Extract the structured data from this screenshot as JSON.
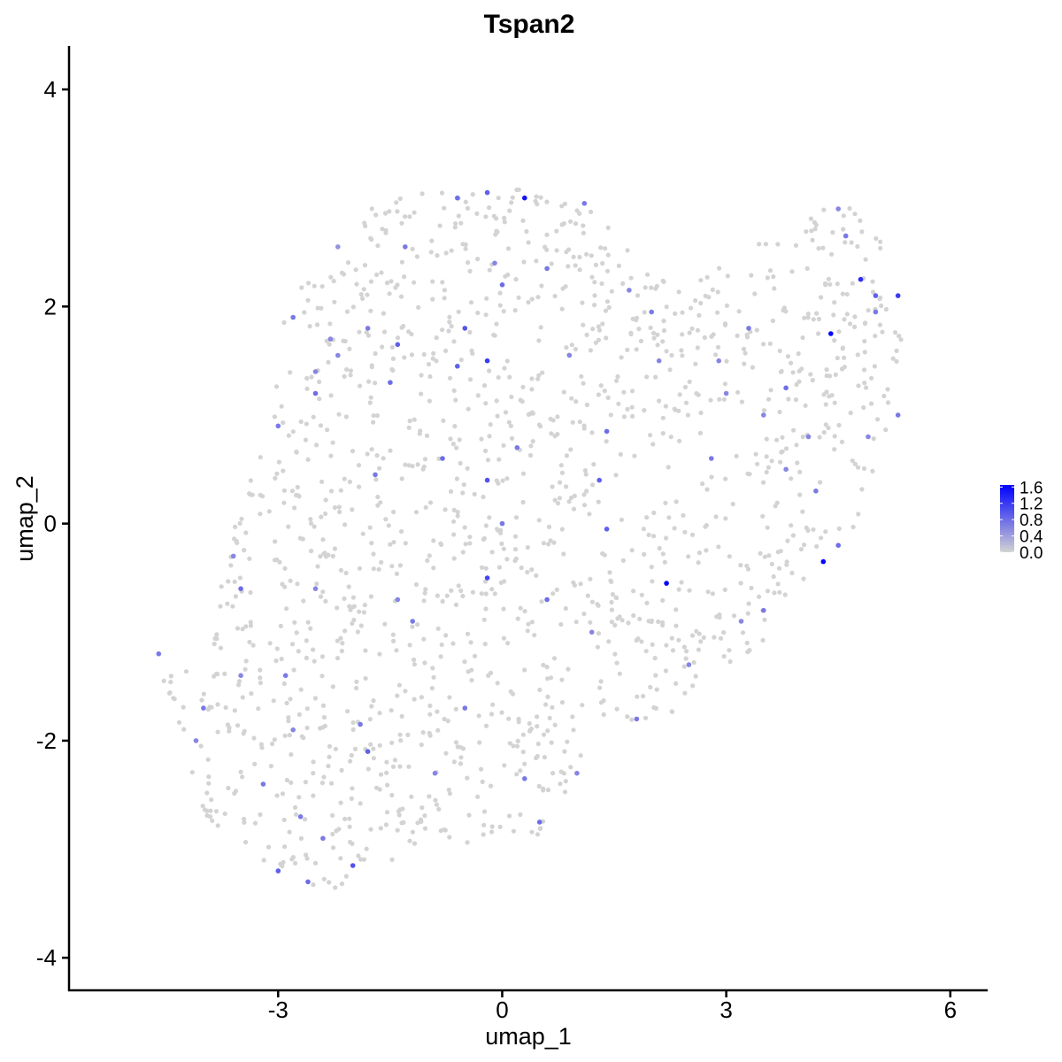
{
  "chart_data": {
    "type": "scatter",
    "title": "Tspan2",
    "xlabel": "umap_1",
    "ylabel": "umap_2",
    "xlim": [
      -5.8,
      6.5
    ],
    "ylim": [
      -4.3,
      4.4
    ],
    "x_ticks": [
      -3,
      0,
      3,
      6
    ],
    "x_tick_labels": [
      "-3",
      "0",
      "3",
      "6"
    ],
    "y_ticks": [
      -4,
      -2,
      0,
      2,
      4
    ],
    "y_tick_labels": [
      "-4",
      "-2",
      "0",
      "2",
      "4"
    ],
    "grid": false,
    "legend": {
      "placement": "right",
      "type": "colorbar",
      "min": 0.0,
      "max": 1.65,
      "ticks": [
        0.0,
        0.4,
        0.8,
        1.2,
        1.6
      ],
      "tick_labels": [
        "0.0",
        "0.4",
        "0.8",
        "1.2",
        "1.6"
      ],
      "color_low": "#d3d3d3",
      "color_high": "#0000ff"
    },
    "points_expressing": [
      [
        0.3,
        3.0,
        1.5
      ],
      [
        -0.2,
        3.05,
        0.9
      ],
      [
        -0.6,
        3.0,
        0.8
      ],
      [
        -1.3,
        2.55,
        0.7
      ],
      [
        -2.2,
        2.55,
        0.5
      ],
      [
        -2.8,
        1.9,
        0.7
      ],
      [
        -2.5,
        1.4,
        0.6
      ],
      [
        -2.5,
        1.2,
        0.8
      ],
      [
        -3.0,
        0.9,
        0.7
      ],
      [
        -2.2,
        1.55,
        0.6
      ],
      [
        -1.4,
        1.65,
        0.9
      ],
      [
        -1.5,
        1.3,
        0.8
      ],
      [
        -0.6,
        1.45,
        0.9
      ],
      [
        -0.5,
        1.8,
        1.0
      ],
      [
        -0.2,
        1.5,
        1.2
      ],
      [
        0.0,
        2.2,
        0.8
      ],
      [
        1.1,
        2.95,
        0.7
      ],
      [
        1.7,
        2.15,
        0.6
      ],
      [
        2.0,
        1.95,
        0.7
      ],
      [
        -0.2,
        0.4,
        1.0
      ],
      [
        0.0,
        0.0,
        0.7
      ],
      [
        -0.2,
        -0.5,
        1.1
      ],
      [
        -1.2,
        -0.9,
        0.7
      ],
      [
        -2.5,
        -0.6,
        0.6
      ],
      [
        -2.9,
        -1.4,
        0.7
      ],
      [
        -3.6,
        -0.3,
        0.6
      ],
      [
        -3.5,
        -0.6,
        0.8
      ],
      [
        -4.0,
        -1.7,
        0.7
      ],
      [
        -4.1,
        -2.0,
        0.6
      ],
      [
        -3.2,
        -2.4,
        0.7
      ],
      [
        -2.6,
        -3.3,
        0.8
      ],
      [
        -3.0,
        -3.2,
        0.9
      ],
      [
        -2.0,
        -3.15,
        1.0
      ],
      [
        -2.4,
        -2.9,
        0.7
      ],
      [
        -1.8,
        -2.1,
        0.9
      ],
      [
        -1.9,
        -1.85,
        0.7
      ],
      [
        -0.9,
        -2.3,
        0.6
      ],
      [
        0.3,
        -2.35,
        0.7
      ],
      [
        0.5,
        -2.75,
        0.8
      ],
      [
        1.0,
        -2.3,
        0.6
      ],
      [
        1.4,
        -0.05,
        0.9
      ],
      [
        2.2,
        -0.55,
        1.6
      ],
      [
        1.4,
        0.85,
        0.8
      ],
      [
        1.3,
        0.4,
        0.9
      ],
      [
        3.2,
        -0.9,
        0.6
      ],
      [
        3.5,
        -0.8,
        0.7
      ],
      [
        4.3,
        -0.35,
        1.6
      ],
      [
        4.5,
        -0.2,
        0.8
      ],
      [
        4.4,
        1.75,
        1.6
      ],
      [
        4.8,
        2.25,
        1.3
      ],
      [
        5.0,
        2.1,
        0.9
      ],
      [
        5.3,
        2.1,
        1.2
      ],
      [
        5.0,
        1.95,
        0.7
      ],
      [
        5.3,
        1.0,
        0.7
      ],
      [
        4.9,
        0.8,
        0.6
      ],
      [
        4.6,
        2.65,
        0.7
      ],
      [
        4.5,
        2.9,
        0.6
      ],
      [
        3.8,
        1.25,
        0.8
      ],
      [
        3.5,
        1.0,
        0.6
      ],
      [
        3.3,
        1.8,
        0.7
      ],
      [
        2.9,
        1.5,
        0.6
      ],
      [
        2.1,
        1.5,
        0.6
      ],
      [
        0.9,
        1.55,
        0.6
      ],
      [
        -1.7,
        0.45,
        0.7
      ],
      [
        -0.8,
        0.6,
        0.8
      ],
      [
        0.2,
        0.7,
        0.7
      ],
      [
        0.6,
        -0.7,
        0.8
      ],
      [
        -0.5,
        -1.7,
        0.7
      ],
      [
        -3.5,
        -1.4,
        0.6
      ],
      [
        -4.6,
        -1.2,
        0.7
      ],
      [
        -2.8,
        -1.9,
        0.6
      ],
      [
        -2.7,
        -2.7,
        0.7
      ],
      [
        -1.4,
        -0.7,
        0.6
      ],
      [
        1.2,
        -1.0,
        0.6
      ],
      [
        1.8,
        -1.8,
        0.7
      ],
      [
        2.5,
        -1.3,
        0.6
      ],
      [
        0.6,
        2.35,
        0.7
      ],
      [
        -0.1,
        2.4,
        0.6
      ],
      [
        -1.8,
        1.8,
        0.7
      ],
      [
        -2.3,
        1.7,
        0.6
      ],
      [
        2.8,
        0.6,
        0.7
      ],
      [
        3.8,
        0.5,
        0.6
      ],
      [
        4.1,
        0.8,
        0.6
      ],
      [
        4.2,
        0.3,
        0.7
      ],
      [
        3.0,
        1.2,
        0.6
      ]
    ]
  }
}
